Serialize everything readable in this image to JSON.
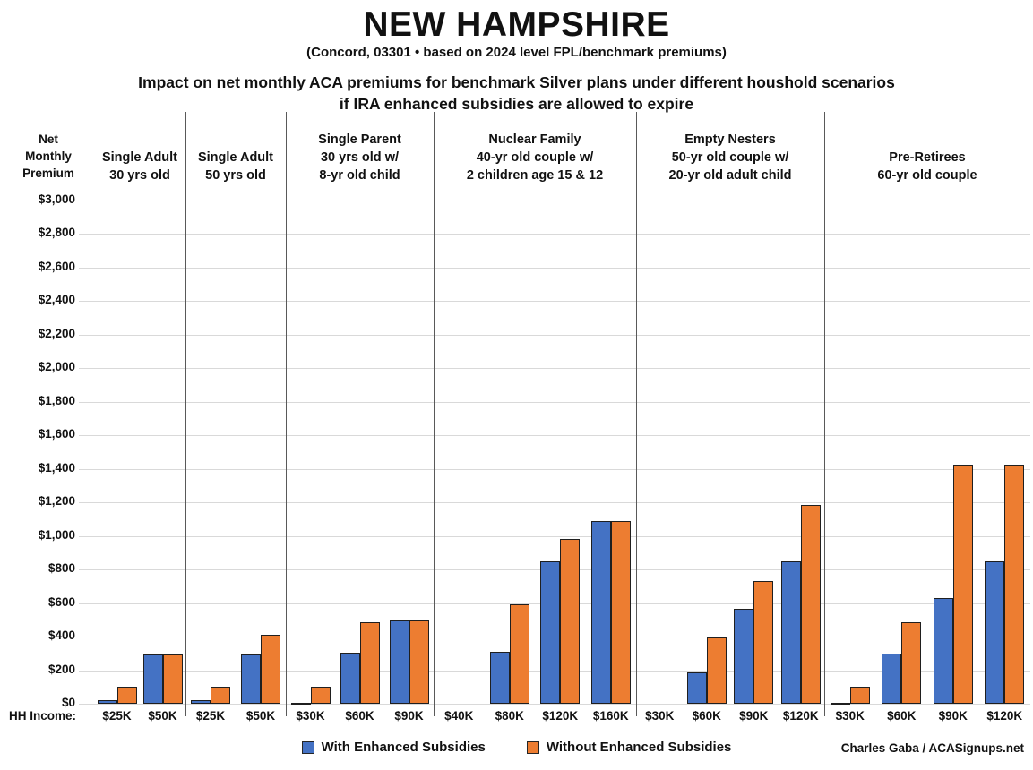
{
  "title": "NEW HAMPSHIRE",
  "subtitle": "(Concord, 03301 • based on 2024 level FPL/benchmark premiums)",
  "heading": {
    "line1": "Impact on net monthly ACA premiums for benchmark Silver plans under different houshold scenarios",
    "line2": "if IRA enhanced subsidies are allowed to expire"
  },
  "y_axis": {
    "line1": "Net",
    "line2": "Monthly",
    "line3": "Premium"
  },
  "x_axis_prefix": "HH Income:",
  "legend": {
    "items": [
      {
        "label": "With Enhanced Subsidies",
        "color": "#4472C4"
      },
      {
        "label": "Without Enhanced Subsidies",
        "color": "#ED7D31"
      }
    ],
    "position": "bottom"
  },
  "credit": "Charles Gaba / ACASignups.net",
  "colors": {
    "with_subsidies": "#4472C4",
    "without_subsidies": "#ED7D31",
    "bar_border": "#1f1f1f",
    "gridline": "#d9d9d9",
    "panel_separator": "#595959"
  },
  "chart_data": {
    "type": "bar",
    "title": "Impact on net monthly ACA premiums for benchmark Silver plans under different houshold scenarios if IRA enhanced subsidies are allowed to expire",
    "ylabel": "Net Monthly Premium",
    "xlabel": "HH Income:",
    "ylim": [
      0,
      3000
    ],
    "ytick_step": 200,
    "ytick_labels": [
      "$0",
      "$200",
      "$400",
      "$600",
      "$800",
      "$1,000",
      "$1,200",
      "$1,400",
      "$1,600",
      "$1,800",
      "$2,000",
      "$2,200",
      "$2,400",
      "$2,600",
      "$2,800",
      "$3,000"
    ],
    "grid": true,
    "legend_position": "bottom",
    "series_names": [
      "With Enhanced Subsidies",
      "Without Enhanced Subsidies"
    ],
    "groups": [
      {
        "label_lines": [
          "Single Adult",
          "30 yrs old"
        ],
        "categories": [
          "$25K",
          "$50K"
        ],
        "with": [
          20,
          295
        ],
        "without": [
          100,
          295
        ]
      },
      {
        "label_lines": [
          "Single Adult",
          "50 yrs old"
        ],
        "categories": [
          "$25K",
          "$50K"
        ],
        "with": [
          20,
          295
        ],
        "without": [
          100,
          410
        ]
      },
      {
        "label_lines": [
          "Single Parent",
          "30 yrs old w/",
          "8-yr old child"
        ],
        "categories": [
          "$30K",
          "$60K",
          "$90K"
        ],
        "with": [
          5,
          305,
          495
        ],
        "without": [
          100,
          485,
          495
        ]
      },
      {
        "label_lines": [
          "Nuclear Family",
          "40-yr old couple w/",
          "2 children age 15 & 12"
        ],
        "categories": [
          "$40K",
          "$80K",
          "$120K",
          "$160K"
        ],
        "with": [
          0,
          310,
          850,
          1090
        ],
        "without": [
          0,
          590,
          980,
          1090
        ]
      },
      {
        "label_lines": [
          "Empty Nesters",
          "50-yr old couple w/",
          "20-yr old adult child"
        ],
        "categories": [
          "$30K",
          "$60K",
          "$90K",
          "$120K"
        ],
        "with": [
          0,
          185,
          565,
          850
        ],
        "without": [
          0,
          395,
          730,
          1185
        ]
      },
      {
        "label_lines": [
          "Pre-Retirees",
          "60-yr old couple"
        ],
        "categories": [
          "$30K",
          "$60K",
          "$90K",
          "$120K"
        ],
        "with": [
          5,
          300,
          630,
          850
        ],
        "without": [
          100,
          485,
          1425,
          1425
        ]
      }
    ]
  }
}
